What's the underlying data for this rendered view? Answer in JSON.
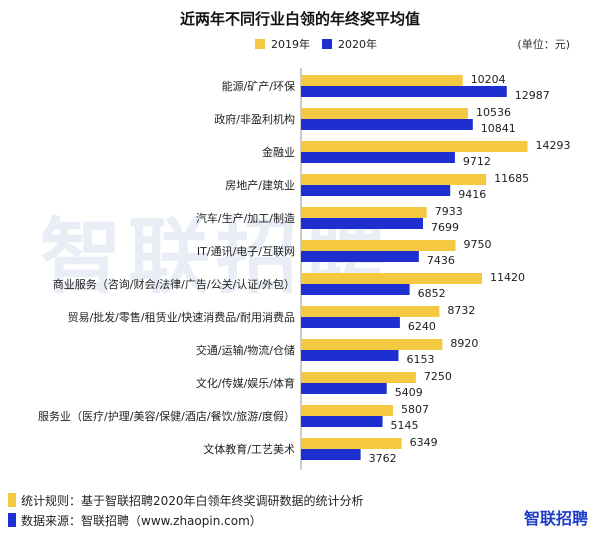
{
  "title": "近两年不同行业白领的年终奖平均值",
  "unit_label": "(单位：元)",
  "watermark_text": "智联招聘",
  "logo_text": "智联招聘",
  "footer": {
    "rule": "统计规则：基于智联招聘2020年白领年终奖调研数据的统计分析",
    "source": "数据来源：智联招聘（www.zhaopin.com）"
  },
  "colors": {
    "2019": "#f5c842",
    "2020": "#1e2fd0",
    "axis": "#999999",
    "label": "#222222"
  },
  "chart_data": {
    "type": "bar",
    "orientation": "horizontal",
    "title": "近两年不同行业白领的年终奖平均值",
    "legend_position": "top",
    "categories": [
      "能源/矿产/环保",
      "政府/非盈利机构",
      "金融业",
      "房地产/建筑业",
      "汽车/生产/加工/制造",
      "IT/通讯/电子/互联网",
      "商业服务（咨询/财会/法律/广告/公关/认证/外包）",
      "贸易/批发/零售/租赁业/快速消费品/耐用消费品",
      "交通/运输/物流/仓储",
      "文化/传媒/娱乐/体育",
      "服务业（医疗/护理/美容/保健/酒店/餐饮/旅游/度假）",
      "文体教育/工艺美术"
    ],
    "series": [
      {
        "name": "2019年",
        "values": [
          10204,
          10536,
          14293,
          11685,
          7933,
          9750,
          11420,
          8732,
          8920,
          7250,
          5807,
          6349
        ]
      },
      {
        "name": "2020年",
        "values": [
          12987,
          10841,
          9712,
          9416,
          7699,
          7436,
          6852,
          6240,
          6153,
          5409,
          5145,
          3762
        ]
      }
    ],
    "xlim": [
      0,
      14293
    ],
    "grid": false
  }
}
